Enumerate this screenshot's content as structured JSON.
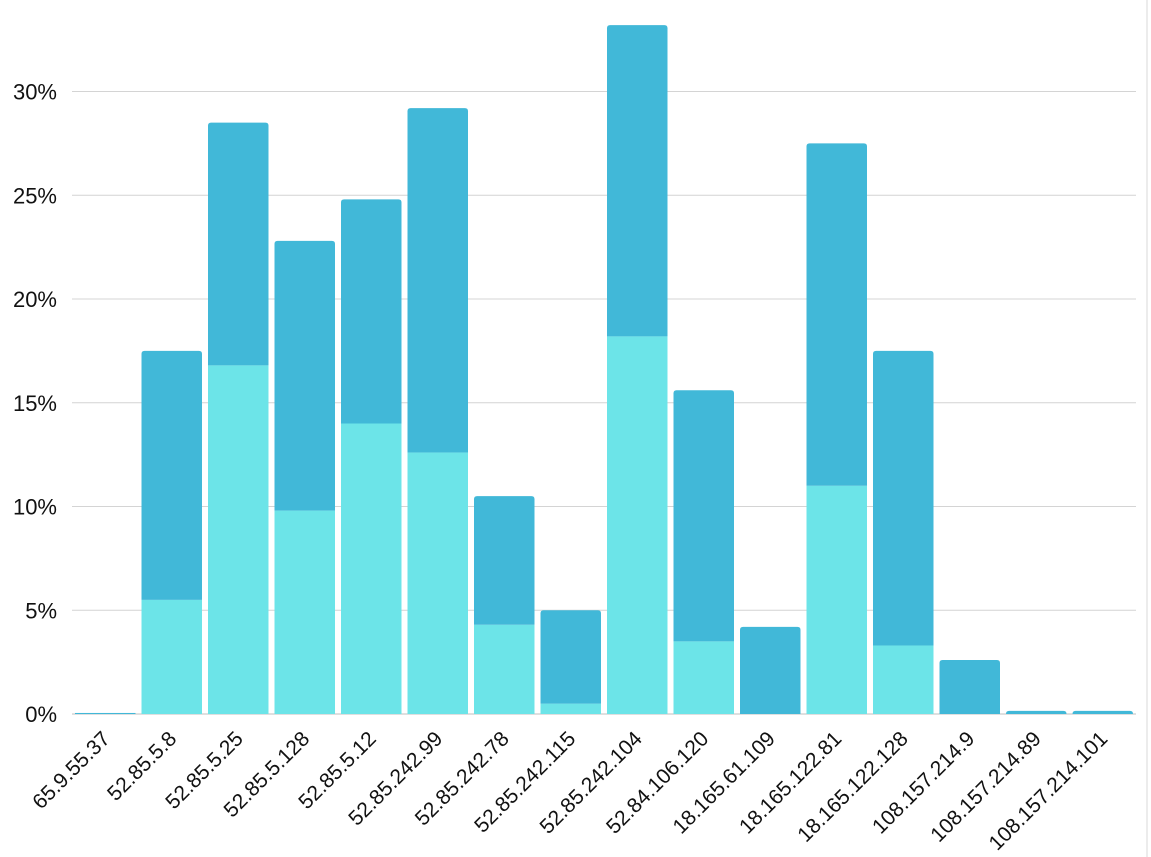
{
  "chart_data": {
    "type": "bar",
    "stacked": true,
    "categories": [
      "65.9.55.37",
      "52.85.5.8",
      "52.85.5.25",
      "52.85.5.128",
      "52.85.5.12",
      "52.85.242.99",
      "52.85.242.78",
      "52.85.242.115",
      "52.85.242.104",
      "52.84.106.120",
      "18.165.61.109",
      "18.165.122.81",
      "18.165.122.128",
      "108.157.214.9",
      "108.157.214.89",
      "108.157.214.101"
    ],
    "series": [
      {
        "values": [
          0.0,
          5.5,
          16.8,
          9.8,
          14.0,
          12.6,
          4.3,
          0.5,
          18.2,
          3.5,
          0.0,
          11.0,
          3.3,
          0.0,
          0.0,
          0.0
        ],
        "color": "#6ce4e8"
      },
      {
        "values": [
          0.05,
          12.0,
          11.7,
          13.0,
          10.8,
          16.6,
          6.2,
          4.5,
          15.0,
          12.1,
          4.2,
          16.5,
          14.2,
          2.6,
          0.15,
          0.15
        ],
        "color": "#41b8d8"
      }
    ],
    "title": "",
    "xlabel": "",
    "ylabel": "",
    "ylim": [
      0,
      34
    ],
    "yticks": [
      0,
      5,
      10,
      15,
      20,
      25,
      30
    ],
    "ytick_labels": [
      "0%",
      "5%",
      "10%",
      "15%",
      "20%",
      "25%",
      "30%"
    ],
    "grid": true,
    "legend": "none"
  }
}
